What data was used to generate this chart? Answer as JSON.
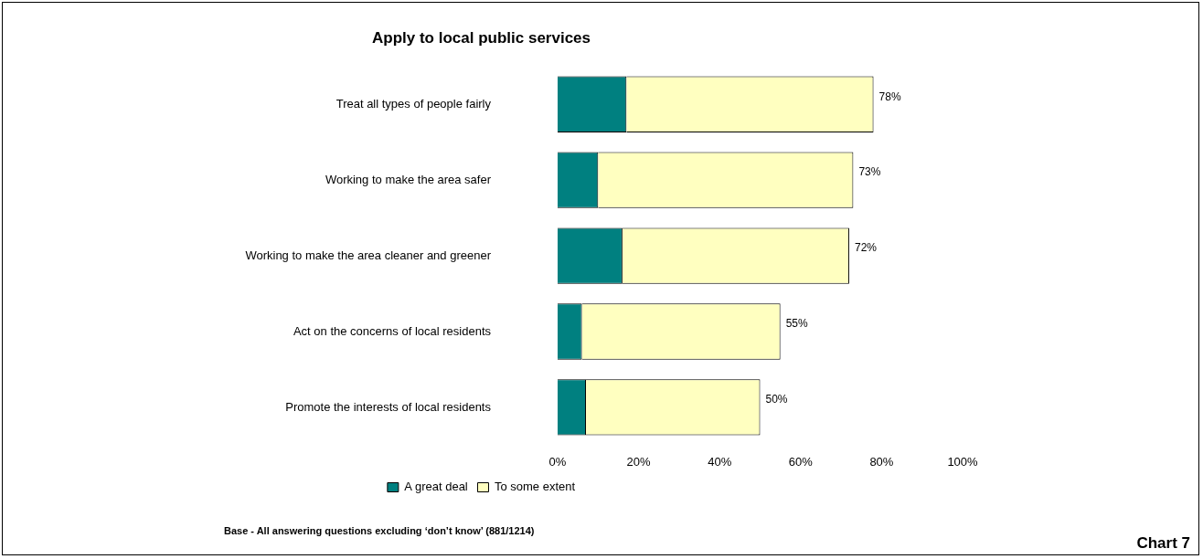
{
  "chart_data": {
    "type": "bar",
    "orientation": "horizontal",
    "stacked": true,
    "title": "Apply to local public services",
    "categories": [
      "Treat all types of people fairly",
      "Working to make the area safer",
      "Working to make the area cleaner and greener",
      "Act on the concerns of local residents",
      "Promote the interests of local residents"
    ],
    "series": [
      {
        "name": "A great deal",
        "color": "#008080",
        "values": [
          17,
          10,
          16,
          6,
          7
        ]
      },
      {
        "name": "To some extent",
        "color": "#ffffc0",
        "values": [
          61,
          63,
          56,
          49,
          43
        ]
      }
    ],
    "totals": [
      "78%",
      "73%",
      "72%",
      "55%",
      "50%"
    ],
    "xlim": [
      0,
      100
    ],
    "xticks": [
      {
        "value": 0,
        "label": "0%"
      },
      {
        "value": 20,
        "label": "20%"
      },
      {
        "value": 40,
        "label": "40%"
      },
      {
        "value": 60,
        "label": "60%"
      },
      {
        "value": 80,
        "label": "80%"
      },
      {
        "value": 100,
        "label": "100%"
      }
    ],
    "legend": "bottom",
    "annotations": [
      "Base - All answering questions excluding ‘don’t know’ (881/1214)",
      "Chart 7"
    ]
  }
}
